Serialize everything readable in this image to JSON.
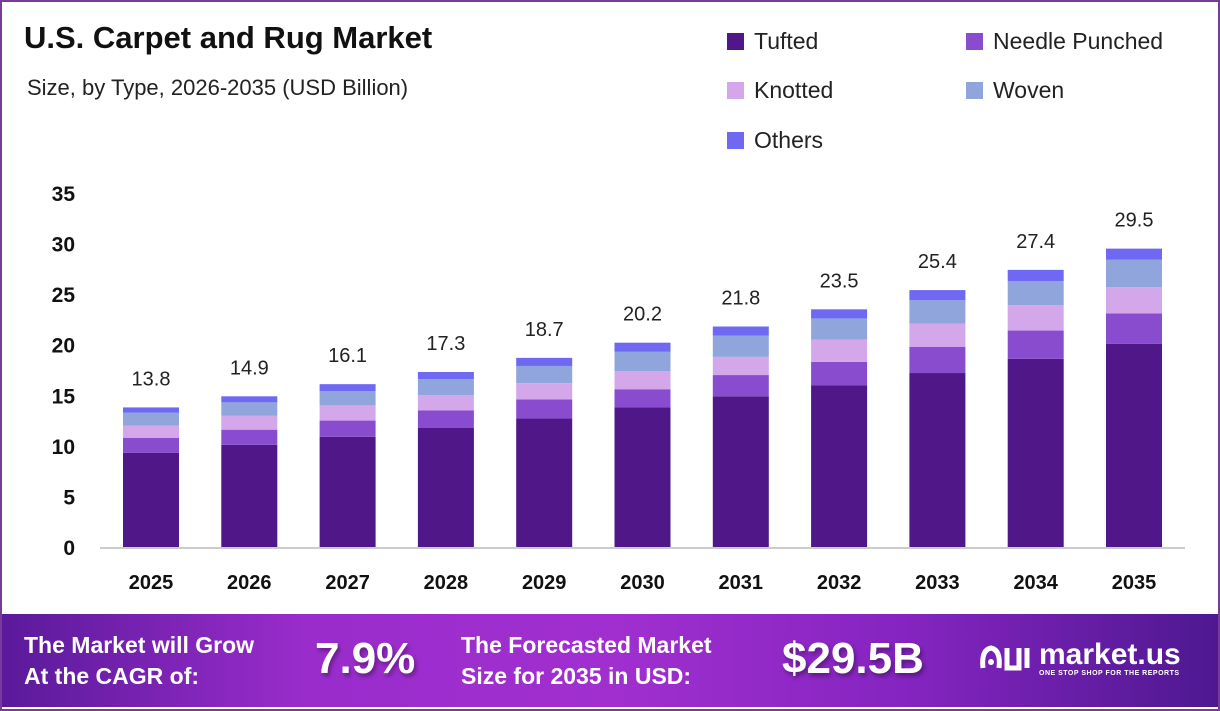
{
  "chart_data": {
    "type": "bar",
    "stacked": true,
    "title": "U.S. Carpet and Rug Market",
    "subtitle": "Size, by Type, 2026-2035 (USD Billion)",
    "xlabel": "",
    "ylabel": "",
    "ylim": [
      0,
      35
    ],
    "yticks": [
      0,
      5,
      10,
      15,
      20,
      25,
      30,
      35
    ],
    "grid": false,
    "legend_position": "top-right",
    "categories": [
      "2025",
      "2026",
      "2027",
      "2028",
      "2029",
      "2030",
      "2031",
      "2032",
      "2033",
      "2034",
      "2035"
    ],
    "totals": [
      "13.8",
      "14.9",
      "16.1",
      "17.3",
      "18.7",
      "20.2",
      "21.8",
      "23.5",
      "25.4",
      "27.4",
      "29.5"
    ],
    "series": [
      {
        "name": "Tufted",
        "color": "#4f1787",
        "values": [
          9.3,
          10.1,
          10.9,
          11.8,
          12.7,
          13.8,
          14.9,
          16.0,
          17.2,
          18.6,
          20.1
        ]
      },
      {
        "name": "Needle Punched",
        "color": "#8a4ccf",
        "values": [
          1.5,
          1.5,
          1.6,
          1.7,
          1.9,
          1.8,
          2.1,
          2.3,
          2.6,
          2.8,
          3.0
        ]
      },
      {
        "name": "Knotted",
        "color": "#d3a7ea",
        "values": [
          1.2,
          1.4,
          1.5,
          1.5,
          1.6,
          1.8,
          1.8,
          2.2,
          2.3,
          2.5,
          2.6
        ]
      },
      {
        "name": "Woven",
        "color": "#8fa5db",
        "values": [
          1.3,
          1.3,
          1.4,
          1.6,
          1.7,
          1.9,
          2.1,
          2.1,
          2.3,
          2.4,
          2.7
        ]
      },
      {
        "name": "Others",
        "color": "#6e68f3",
        "values": [
          0.5,
          0.6,
          0.7,
          0.7,
          0.8,
          0.9,
          0.9,
          0.9,
          1.0,
          1.1,
          1.1
        ]
      }
    ]
  },
  "footer": {
    "cagr_label_line1": "The Market will Grow",
    "cagr_label_line2": "At the CAGR of:",
    "cagr_value": "7.9%",
    "forecast_label_line1": "The Forecasted Market",
    "forecast_label_line2": "Size for 2035 in USD:",
    "forecast_value": "$29.5B",
    "brand_name": "market.us",
    "brand_tagline": "ONE STOP SHOP FOR THE REPORTS"
  }
}
